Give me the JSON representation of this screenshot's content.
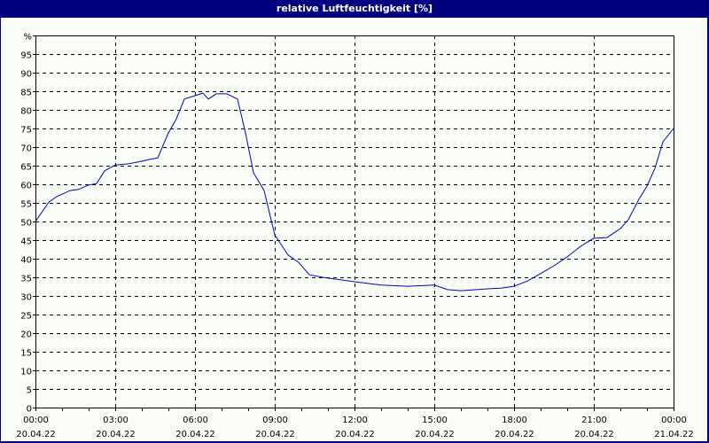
{
  "window": {
    "title": "relative Luftfeuchtigkeit [%]"
  },
  "colors": {
    "frame": "#000080",
    "background": "#fbfdf8",
    "line": "#0000cc",
    "grid": "#000000"
  },
  "chart_data": {
    "type": "line",
    "title": "relative Luftfeuchtigkeit [%]",
    "xlabel": "",
    "ylabel": "%",
    "ylim": [
      0,
      100
    ],
    "xlim_hours": [
      0,
      24
    ],
    "grid": true,
    "grid_style": "dashed",
    "legend": null,
    "y_ticks": [
      "0",
      "5",
      "10",
      "15",
      "20",
      "25",
      "30",
      "35",
      "40",
      "45",
      "50",
      "55",
      "60",
      "65",
      "70",
      "75",
      "80",
      "85",
      "90",
      "95",
      "%"
    ],
    "x_ticks": [
      {
        "time": "00:00",
        "date": "20.04.22"
      },
      {
        "time": "03:00",
        "date": "20.04.22"
      },
      {
        "time": "06:00",
        "date": "20.04.22"
      },
      {
        "time": "09:00",
        "date": "20.04.22"
      },
      {
        "time": "12:00",
        "date": "20.04.22"
      },
      {
        "time": "15:00",
        "date": "20.04.22"
      },
      {
        "time": "18:00",
        "date": "20.04.22"
      },
      {
        "time": "21:00",
        "date": "20.04.22"
      },
      {
        "time": "00:00",
        "date": "21.04.22"
      }
    ],
    "series": [
      {
        "name": "relative Luftfeuchtigkeit",
        "x_hours": [
          0,
          0.5,
          0.8,
          1.3,
          1.6,
          2.0,
          2.3,
          2.6,
          3.0,
          3.5,
          4.0,
          4.3,
          4.6,
          5.0,
          5.3,
          5.6,
          6.0,
          6.3,
          6.5,
          6.8,
          7.2,
          7.6,
          7.9,
          8.2,
          8.6,
          9.0,
          9.5,
          9.9,
          10.3,
          10.8,
          11.5,
          12,
          13,
          14,
          15,
          15.5,
          16,
          17,
          17.5,
          18,
          18.5,
          19,
          19.5,
          20,
          20.5,
          21,
          21.5,
          22,
          22.3,
          22.7,
          23.0,
          23.3,
          23.6,
          24
        ],
        "values": [
          50,
          55.2,
          56.7,
          58.3,
          58.6,
          59.8,
          60.2,
          63.6,
          65.2,
          65.5,
          66.2,
          66.7,
          67.1,
          73.8,
          77.6,
          82.9,
          83.8,
          84.5,
          82.9,
          84.3,
          84.3,
          82.9,
          73.8,
          63.1,
          58.3,
          46.4,
          41.0,
          39.0,
          35.7,
          35.0,
          34.3,
          33.8,
          32.9,
          32.6,
          32.9,
          31.7,
          31.4,
          31.9,
          32.1,
          32.6,
          34.0,
          36.0,
          38.1,
          40.5,
          43.3,
          45.5,
          45.7,
          48.1,
          50.5,
          56.0,
          59.5,
          64.3,
          71.4,
          75.0
        ]
      }
    ]
  }
}
